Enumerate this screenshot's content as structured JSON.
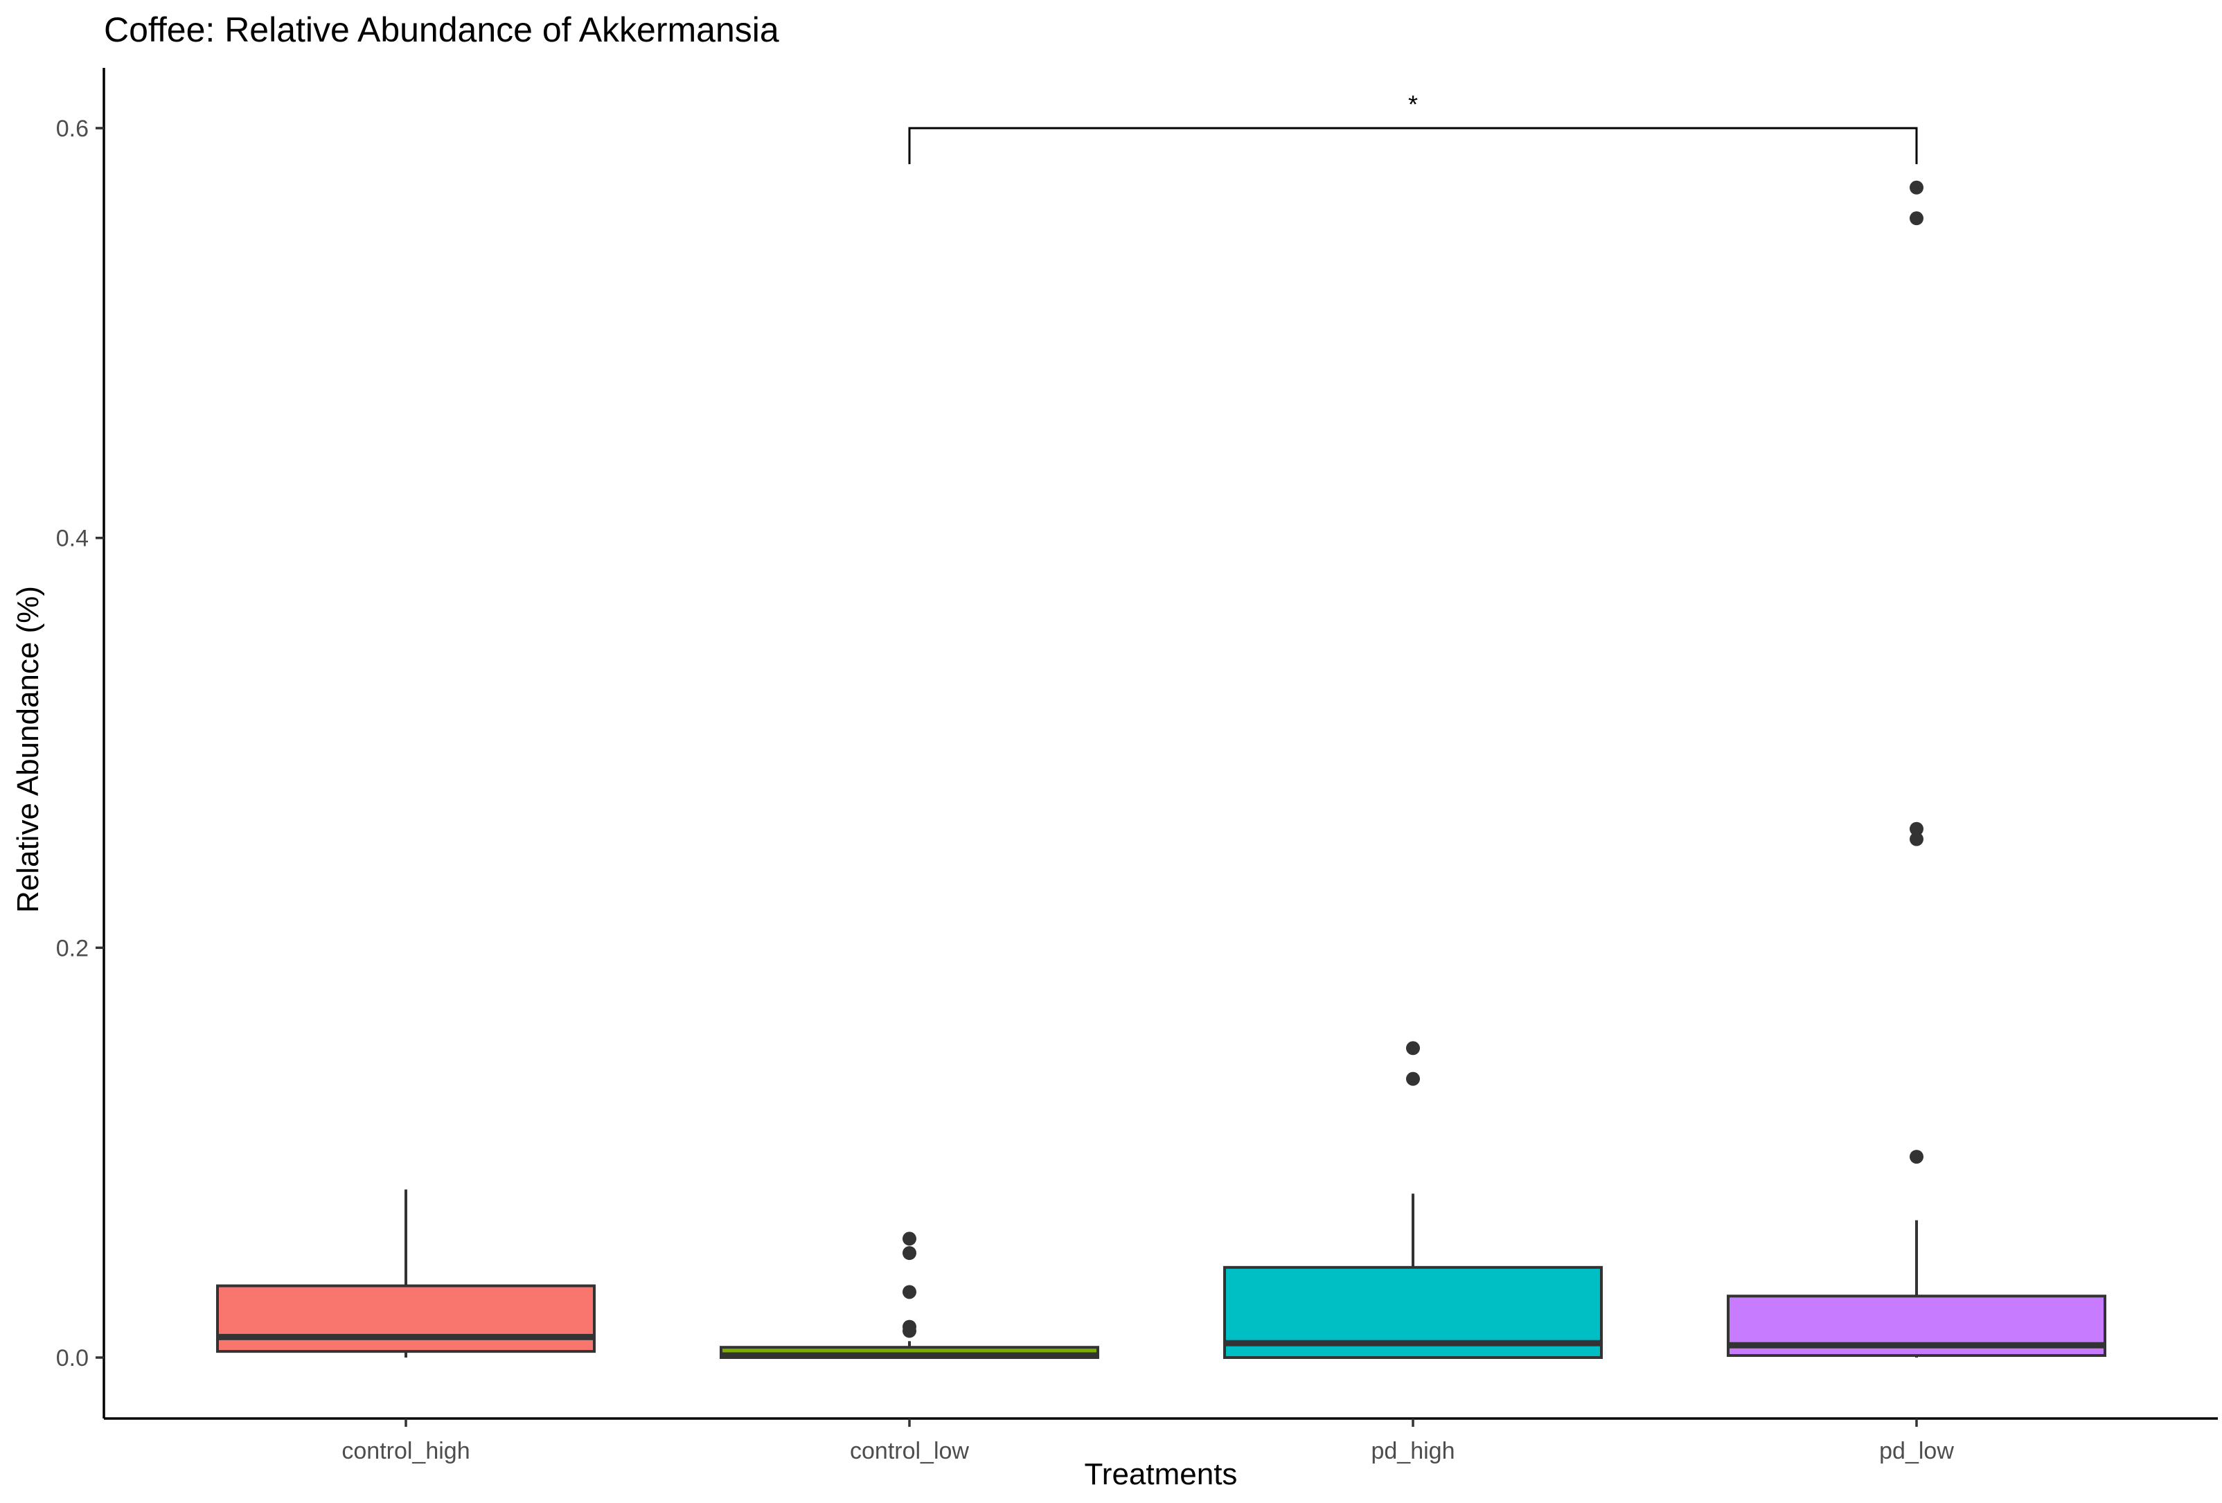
{
  "chart_data": {
    "type": "boxplot",
    "title": "Coffee: Relative Abundance of Akkermansia",
    "xlabel": "Treatments",
    "ylabel": "Relative Abundance (%)",
    "ylim": [
      -0.03,
      0.625
    ],
    "yticks": [
      0.0,
      0.2,
      0.4,
      0.6
    ],
    "ytick_labels": [
      "0.0",
      "0.2",
      "0.4",
      "0.6"
    ],
    "grid": false,
    "legend": "none",
    "categories": [
      "control_high",
      "control_low",
      "pd_high",
      "pd_low"
    ],
    "boxes": [
      {
        "name": "control_high",
        "color": "#F8766D",
        "q1": 0.003,
        "median": 0.01,
        "q3": 0.035,
        "whisker_low": 0.0,
        "whisker_high": 0.082,
        "outliers": []
      },
      {
        "name": "control_low",
        "color": "#7CAE00",
        "q1": 0.0,
        "median": 0.001,
        "q3": 0.005,
        "whisker_low": 0.0,
        "whisker_high": 0.008,
        "outliers": [
          0.058,
          0.051,
          0.032,
          0.015,
          0.013
        ]
      },
      {
        "name": "pd_high",
        "color": "#00BFC4",
        "q1": 0.0,
        "median": 0.007,
        "q3": 0.044,
        "whisker_low": 0.0,
        "whisker_high": 0.08,
        "outliers": [
          0.151,
          0.136
        ]
      },
      {
        "name": "pd_low",
        "color": "#C77CFF",
        "q1": 0.001,
        "median": 0.006,
        "q3": 0.03,
        "whisker_low": 0.0,
        "whisker_high": 0.067,
        "outliers": [
          0.571,
          0.556,
          0.258,
          0.253,
          0.098
        ]
      }
    ],
    "significance": [
      {
        "from": "control_low",
        "to": "pd_low",
        "y": 0.6,
        "label": "*"
      }
    ]
  }
}
